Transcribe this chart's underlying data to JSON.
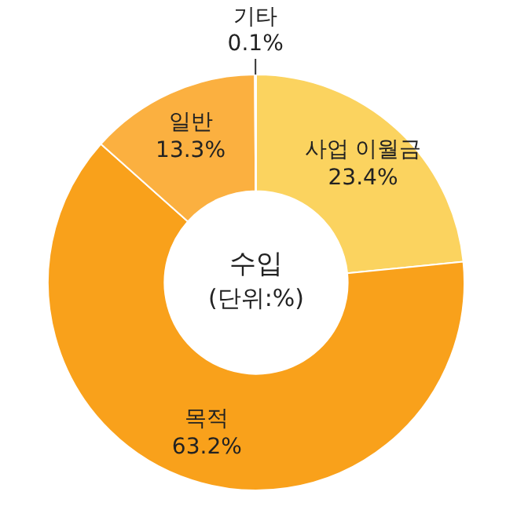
{
  "chart_data": {
    "type": "donut",
    "title": "수입",
    "subtitle": "(단위:%)",
    "categories": [
      "사업 이월금",
      "목적",
      "일반",
      "기타"
    ],
    "values": [
      23.4,
      63.2,
      13.3,
      0.1
    ],
    "value_labels": [
      "23.4%",
      "63.2%",
      "13.3%",
      "0.1%"
    ],
    "colors": [
      "#fbd35f",
      "#f9a11b",
      "#fbb040",
      "#f3e21c"
    ],
    "legend": false
  }
}
